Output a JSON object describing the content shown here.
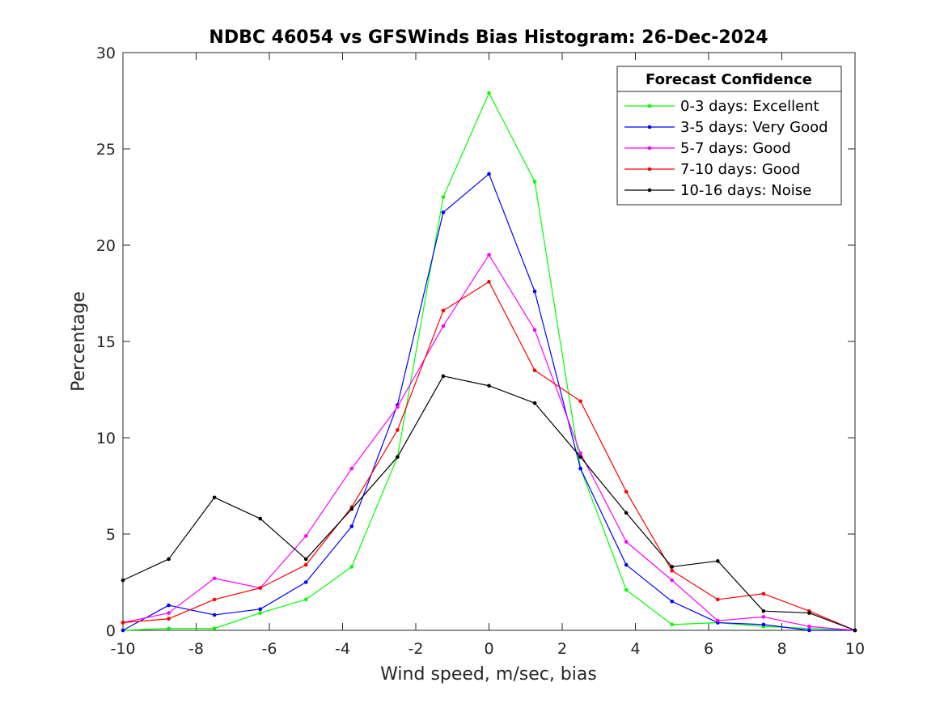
{
  "chart_data": {
    "type": "line",
    "title": "NDBC 46054 vs GFSWinds Bias Histogram: 26-Dec-2024",
    "xlabel": "Wind speed, m/sec, bias",
    "ylabel": "Percentage",
    "xlim": [
      -10,
      10
    ],
    "ylim": [
      0,
      30
    ],
    "xticks": [
      -10,
      -8,
      -6,
      -4,
      -2,
      0,
      2,
      4,
      6,
      8,
      10
    ],
    "yticks": [
      0,
      5,
      10,
      15,
      20,
      25,
      30
    ],
    "grid": false,
    "legend": {
      "title": "Forecast Confidence",
      "placement": "top-right"
    },
    "x": [
      -10,
      -8.75,
      -7.5,
      -6.25,
      -5,
      -3.75,
      -2.5,
      -1.25,
      0,
      1.25,
      2.5,
      3.75,
      5,
      6.25,
      7.5,
      8.75,
      10
    ],
    "series": [
      {
        "name": "0-3 days: Excellent",
        "color": "#00ff00",
        "values": [
          0,
          0.1,
          0.1,
          0.9,
          1.6,
          3.3,
          9.0,
          22.5,
          27.9,
          23.3,
          8.4,
          2.1,
          0.3,
          0.4,
          0.2,
          0.1,
          0
        ]
      },
      {
        "name": "3-5 days: Very Good",
        "color": "#0000ff",
        "values": [
          0,
          1.3,
          0.8,
          1.1,
          2.5,
          5.4,
          11.7,
          21.7,
          23.7,
          17.6,
          8.4,
          3.4,
          1.5,
          0.4,
          0.3,
          0,
          0
        ]
      },
      {
        "name": "5-7 days: Good",
        "color": "#ff00ff",
        "values": [
          0.4,
          0.9,
          2.7,
          2.2,
          4.9,
          8.4,
          11.6,
          15.8,
          19.5,
          15.6,
          9.2,
          4.6,
          2.6,
          0.5,
          0.7,
          0.2,
          0
        ]
      },
      {
        "name": "7-10 days: Good",
        "color": "#ff0000",
        "values": [
          0.4,
          0.6,
          1.6,
          2.2,
          3.4,
          6.4,
          10.4,
          16.6,
          18.1,
          13.5,
          11.9,
          7.2,
          3.1,
          1.6,
          1.9,
          1.0,
          0
        ]
      },
      {
        "name": "10-16 days: Noise",
        "color": "#000000",
        "values": [
          2.6,
          3.7,
          6.9,
          5.8,
          3.7,
          6.3,
          9.0,
          13.2,
          12.7,
          11.8,
          9.0,
          6.1,
          3.3,
          3.6,
          1.0,
          0.9,
          0
        ]
      }
    ]
  }
}
